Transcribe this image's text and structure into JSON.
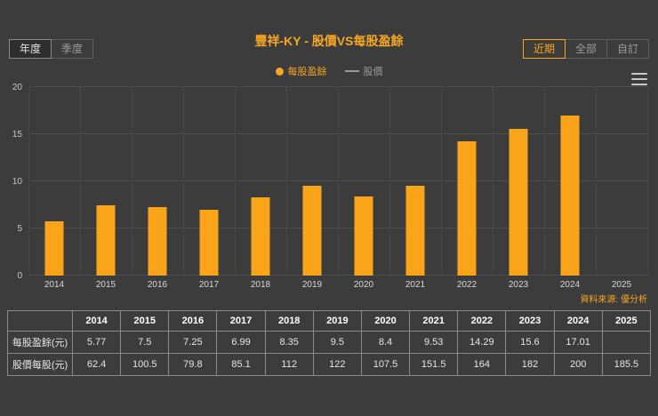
{
  "toolbar": {
    "left": [
      {
        "label": "年度",
        "active": true
      },
      {
        "label": "季度",
        "active": false
      }
    ],
    "right": [
      {
        "label": "近期",
        "active": true
      },
      {
        "label": "全部",
        "active": false
      },
      {
        "label": "自訂",
        "active": false
      }
    ]
  },
  "chart": {
    "title": "豐祥-KY - 股價VS每股盈餘",
    "legend": [
      {
        "label": "每股盈餘",
        "marker": "dot",
        "color": "#f5a623"
      },
      {
        "label": "股價",
        "marker": "line",
        "color": "#9a9a9a"
      }
    ],
    "source": "資料來源: 優分析"
  },
  "chart_data": {
    "type": "bar",
    "title": "豐祥-KY - 股價VS每股盈餘",
    "categories": [
      "2014",
      "2015",
      "2016",
      "2017",
      "2018",
      "2019",
      "2020",
      "2021",
      "2022",
      "2023",
      "2024",
      "2025"
    ],
    "series": [
      {
        "name": "每股盈餘",
        "type": "bar",
        "values": [
          5.77,
          7.5,
          7.25,
          6.99,
          8.35,
          9.5,
          8.4,
          9.53,
          14.29,
          15.6,
          17.01,
          null
        ]
      },
      {
        "name": "股價",
        "type": "line",
        "values": [
          62.4,
          100.5,
          79.8,
          85.1,
          112,
          122,
          107.5,
          151.5,
          164,
          182,
          200,
          185.5
        ]
      }
    ],
    "ylim": [
      0,
      20
    ],
    "yticks": [
      0,
      5,
      10,
      15,
      20
    ],
    "bar_color": "#faa419",
    "grid": true,
    "legend_position": "top"
  },
  "table": {
    "columns": [
      "",
      "2014",
      "2015",
      "2016",
      "2017",
      "2018",
      "2019",
      "2020",
      "2021",
      "2022",
      "2023",
      "2024",
      "2025"
    ],
    "rows": [
      {
        "label": "每股盈餘(元)",
        "values": [
          "5.77",
          "7.5",
          "7.25",
          "6.99",
          "8.35",
          "9.5",
          "8.4",
          "9.53",
          "14.29",
          "15.6",
          "17.01",
          ""
        ]
      },
      {
        "label": "股價每股(元)",
        "values": [
          "62.4",
          "100.5",
          "79.8",
          "85.1",
          "112",
          "122",
          "107.5",
          "151.5",
          "164",
          "182",
          "200",
          "185.5"
        ]
      }
    ]
  }
}
